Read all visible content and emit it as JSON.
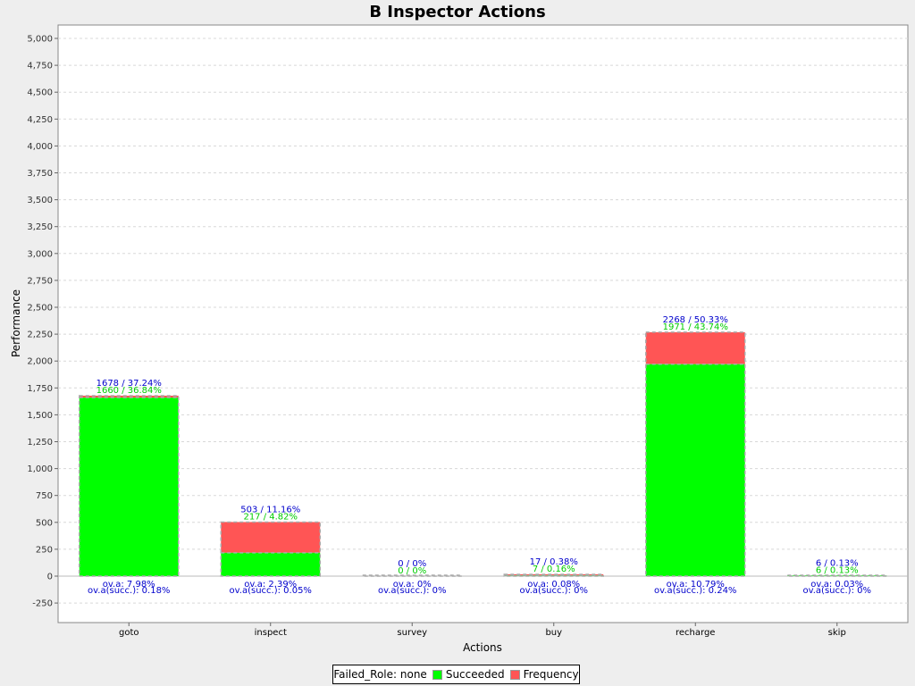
{
  "chart_data": {
    "type": "bar",
    "title": "B Inspector Actions",
    "xlabel": "Actions",
    "ylabel": "Performance",
    "ylim": [
      -375,
      5100
    ],
    "yticks": [
      -250,
      0,
      250,
      500,
      750,
      1000,
      1250,
      1500,
      1750,
      2000,
      2250,
      2500,
      2750,
      3000,
      3250,
      3500,
      3750,
      4000,
      4250,
      4500,
      4750,
      5000
    ],
    "ytick_labels": [
      "-250",
      "0",
      "250",
      "500",
      "750",
      "1,000",
      "1,250",
      "1,500",
      "1,750",
      "2,000",
      "2,250",
      "2,500",
      "2,750",
      "3,000",
      "3,250",
      "3,500",
      "3,750",
      "4,000",
      "4,250",
      "4,500",
      "4,750",
      "5,000"
    ],
    "grid": true,
    "categories": [
      "goto",
      "inspect",
      "survey",
      "buy",
      "recharge",
      "skip"
    ],
    "series": [
      {
        "name": "Succeeded",
        "values": [
          1660,
          217,
          0,
          7,
          1971,
          6
        ],
        "color": "#00ff00"
      },
      {
        "name": "Frequency",
        "values": [
          1678,
          503,
          0,
          17,
          2268,
          6
        ],
        "color": "#ff5555"
      }
    ],
    "annotations": {
      "total": [
        "1678 / 37.24%",
        "503 / 11.16%",
        "0 / 0%",
        "17 / 0.38%",
        "2268 / 50.33%",
        "6 / 0.13%"
      ],
      "succeeded": [
        "1660 / 36.84%",
        "217 / 4.82%",
        "0 / 0%",
        "7 / 0.16%",
        "1971 / 43.74%",
        "6 / 0.13%"
      ],
      "ova": [
        "ov.a: 7.98%",
        "ov.a: 2.39%",
        "ov.a: 0%",
        "ov.a: 0.08%",
        "ov.a: 10.79%",
        "ov.a: 0.03%"
      ],
      "ova_succ": [
        "ov.a(succ.): 0.18%",
        "ov.a(succ.): 0.05%",
        "ov.a(succ.): 0%",
        "ov.a(succ.): 0%",
        "ov.a(succ.): 0.24%",
        "ov.a(succ.): 0%"
      ]
    },
    "legend": {
      "placement": "bottom",
      "prefix": "Failed_Role: none",
      "items": [
        "Succeeded",
        "Frequency"
      ]
    }
  },
  "colors": {
    "succeeded": "#00ff00",
    "frequency": "#ff5555",
    "total_text": "#0000cc",
    "succeeded_text": "#00cc00",
    "ova_text": "#0000cc"
  }
}
